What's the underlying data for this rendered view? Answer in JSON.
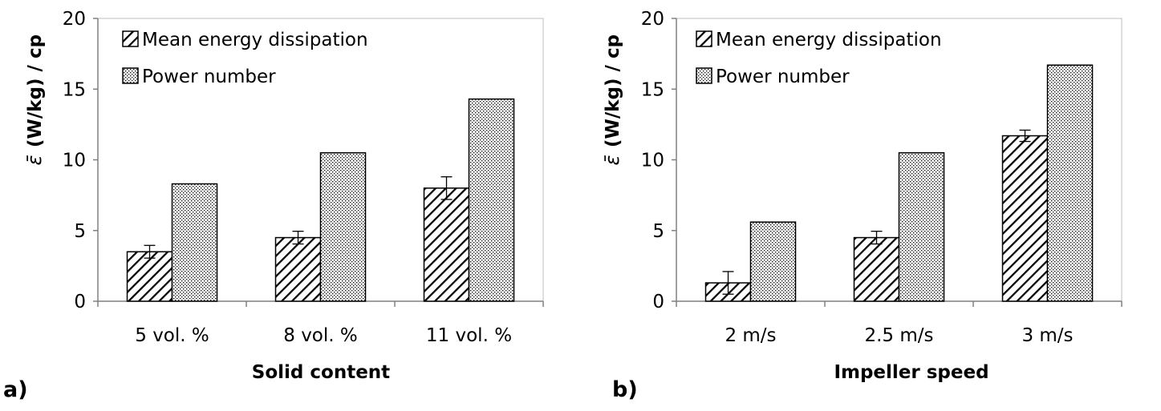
{
  "chart_data": [
    {
      "type": "bar",
      "panel_label": "a)",
      "categories": [
        "5 vol. %",
        "8 vol. %",
        "11 vol. %"
      ],
      "series": [
        {
          "name": "Mean energy dissipation",
          "values": [
            3.5,
            4.5,
            8.0
          ],
          "error": [
            0.45,
            0.45,
            0.8
          ],
          "pattern": "diagonal-hatch"
        },
        {
          "name": "Power number",
          "values": [
            8.3,
            10.5,
            14.3
          ],
          "pattern": "dots"
        }
      ],
      "xlabel": "Solid content",
      "ylabel": "(W/kg) / cp",
      "ylim": [
        0,
        20
      ],
      "yticks": [
        0,
        5,
        10,
        15,
        20
      ],
      "grid": false,
      "legend": "top-left"
    },
    {
      "type": "bar",
      "panel_label": "b)",
      "categories": [
        "2 m/s",
        "2.5 m/s",
        "3 m/s"
      ],
      "series": [
        {
          "name": "Mean energy dissipation",
          "values": [
            1.3,
            4.5,
            11.7
          ],
          "error": [
            0.8,
            0.45,
            0.4
          ],
          "pattern": "diagonal-hatch"
        },
        {
          "name": "Power number",
          "values": [
            5.6,
            10.5,
            16.7
          ],
          "pattern": "dots"
        }
      ],
      "xlabel": "Impeller speed",
      "ylabel": "(W/kg) / cp",
      "ylim": [
        0,
        20
      ],
      "yticks": [
        0,
        5,
        10,
        15,
        20
      ],
      "grid": false,
      "legend": "top-left"
    }
  ]
}
